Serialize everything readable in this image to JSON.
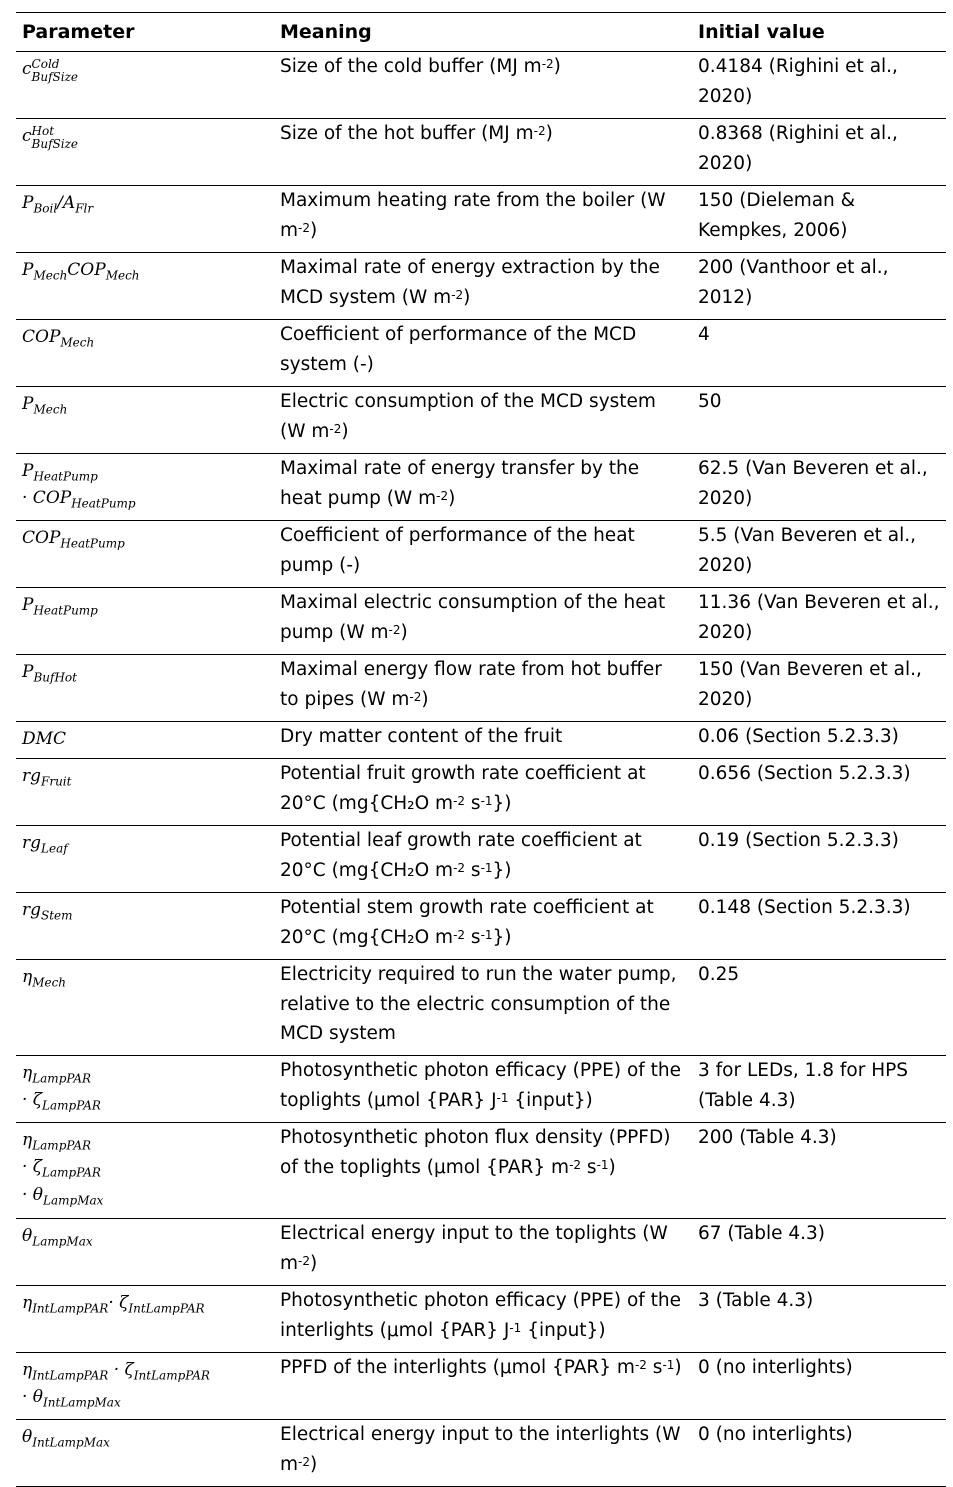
{
  "header": {
    "param": "Parameter",
    "meaning": "Meaning",
    "init": "Initial value"
  },
  "rows": [
    {
      "sym": [
        "c",
        "Cold",
        "BufSize"
      ],
      "m": [
        "Size of the cold buffer (MJ m",
        "-2",
        ")"
      ],
      "v": "0.4184 (Righini et al., 2020)"
    },
    {
      "sym": [
        "c",
        "Hot",
        "BufSize"
      ],
      "m": [
        "Size of the hot buffer (MJ m",
        "-2",
        ")"
      ],
      "v": "0.8368 (Righini et al., 2020)"
    },
    {
      "sym": [
        "P",
        "Boil",
        "/A",
        "Flr"
      ],
      "m": [
        "Maximum heating rate from the boiler (W m",
        "-2",
        ")"
      ],
      "v": "150 (Dieleman & Kempkes, 2006)"
    },
    {
      "sym": [
        "P",
        "Mech",
        "COP",
        "Mech"
      ],
      "m": [
        "Maximal rate of energy extraction by the MCD system (W m",
        "-2",
        ")"
      ],
      "v": "200  (Vanthoor et al., 2012)"
    },
    {
      "sym": [
        "COP",
        "Mech"
      ],
      "m": [
        "Coefficient of performance of the MCD system (-)"
      ],
      "v": "4"
    },
    {
      "sym": [
        "P",
        "Mech"
      ],
      "m": [
        "Electric consumption of the MCD system (W m",
        "-2",
        ")"
      ],
      "v": "50"
    },
    {
      "sym": [
        "P",
        "HeatPump",
        "· COP",
        "HeatPump"
      ],
      "m": [
        "Maximal rate of energy transfer by the heat pump (W m",
        "-2",
        ")"
      ],
      "v": "62.5 (Van Beveren et al., 2020)"
    },
    {
      "sym": [
        "COP",
        "HeatPump"
      ],
      "m": [
        "Coefficient of performance of the heat pump (-)"
      ],
      "v": "5.5 (Van Beveren et al., 2020)"
    },
    {
      "sym": [
        "P",
        "HeatPump"
      ],
      "m": [
        "Maximal electric consumption of the heat pump (W m",
        "-2",
        ")"
      ],
      "v": "11.36 (Van Beveren et al., 2020)"
    },
    {
      "sym": [
        "P",
        "BufHot"
      ],
      "m": [
        "Maximal energy flow rate from hot buffer to pipes (W m",
        "-2",
        ")"
      ],
      "v": "150 (Van Beveren et al., 2020)"
    },
    {
      "sym": [
        "DMC"
      ],
      "m": [
        "Dry matter content of the fruit"
      ],
      "v": "0.06 (Section 5.2.3.3)"
    },
    {
      "sym": [
        "rg",
        "Fruit"
      ],
      "m": [
        "Potential fruit growth rate coefficient at 20°C (mg{CH₂O m",
        "-2",
        " s",
        "-1",
        "})"
      ],
      "v": "0.656 (Section 5.2.3.3)"
    },
    {
      "sym": [
        "rg",
        "Leaf"
      ],
      "m": [
        "Potential leaf growth rate coefficient at 20°C (mg{CH₂O m",
        "-2",
        " s",
        "-1",
        "})"
      ],
      "v": "0.19 (Section 5.2.3.3)"
    },
    {
      "sym": [
        "rg",
        "Stem"
      ],
      "m": [
        "Potential stem growth rate coefficient at 20°C (mg{CH₂O m",
        "-2",
        " s",
        "-1",
        "})"
      ],
      "v": "0.148 (Section 5.2.3.3)"
    },
    {
      "sym": [
        "η",
        "Mech"
      ],
      "m": [
        "Electricity required to run the water pump, relative to the electric consumption of the MCD system"
      ],
      "v": "0.25"
    },
    {
      "sym": [
        "η",
        "LampPAR",
        "· ζ",
        "LampPAR"
      ],
      "m": [
        "Photosynthetic photon efficacy (PPE) of the toplights (μmol {PAR} J",
        "-1",
        " {input})"
      ],
      "v": "3 for LEDs, 1.8 for HPS (Table 4.3)"
    },
    {
      "sym": [
        "η",
        "LampPAR",
        "· ζ",
        "LampPAR",
        "· θ",
        "LampMax"
      ],
      "m": [
        "Photosynthetic photon flux density (PPFD) of the toplights (μmol {PAR} m",
        "-2",
        " s",
        "-1",
        ")"
      ],
      "v": "200 (Table 4.3)"
    },
    {
      "sym": [
        "θ",
        "LampMax"
      ],
      "m": [
        "Electrical energy input to the toplights (W m",
        "-2",
        ")"
      ],
      "v": "67 (Table 4.3)"
    },
    {
      "sym": [
        "η",
        "IntLampPAR",
        "· ζ",
        "IntLampPAR"
      ],
      "m": [
        "Photosynthetic photon efficacy (PPE) of the interlights (μmol {PAR} J",
        "-1",
        " {input})"
      ],
      "v": "3 (Table 4.3)"
    },
    {
      "sym": [
        "η",
        "IntLampPAR",
        "· ζ",
        "IntLampPAR",
        "· θ",
        "IntLampMax"
      ],
      "m": [
        "PPFD of the interlights (μmol {PAR} m",
        "-2",
        " s",
        "-1",
        ")"
      ],
      "v": "0 (no interlights)"
    },
    {
      "sym": [
        "θ",
        "IntLampMax"
      ],
      "m": [
        "Electrical energy input to the interlights (W m",
        "-2",
        ")"
      ],
      "v": "0 (no interlights)"
    }
  ]
}
